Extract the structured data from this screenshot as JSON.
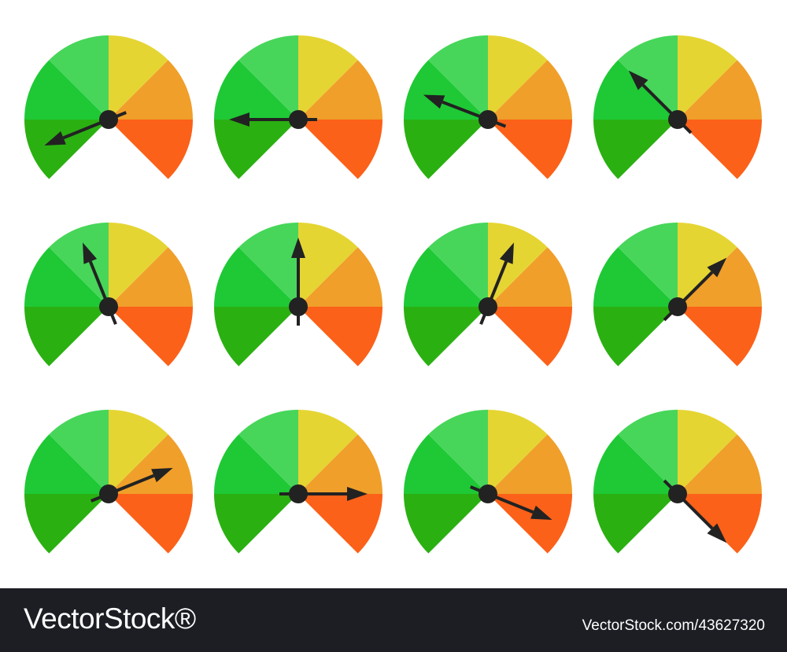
{
  "watermark": {
    "brand": "VectorStock®",
    "url": "VectorStock.com/43627320"
  }
}
